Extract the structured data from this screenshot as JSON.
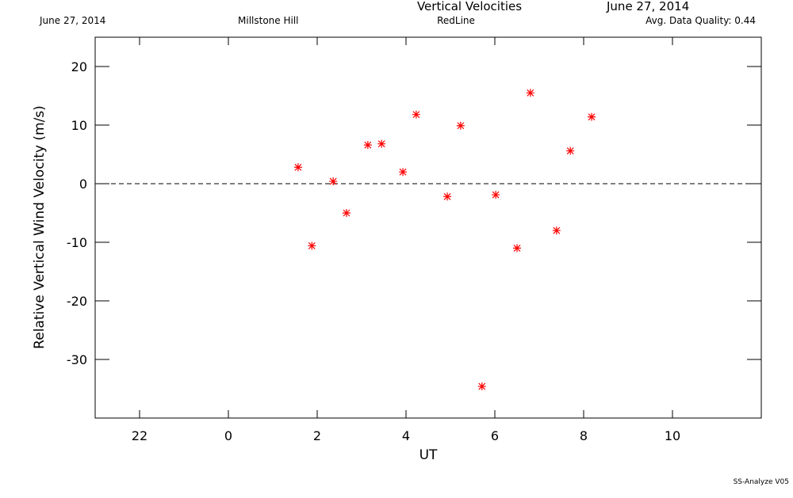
{
  "header": {
    "date_left": "June 27, 2014",
    "site": "Millstone Hill",
    "title": "Vertical Velocities",
    "filter": "RedLine",
    "date_right": "June 27, 2014",
    "quality": "Avg. Data Quality: 0.44"
  },
  "footer": "SS-Analyze V05",
  "chart_data": {
    "type": "scatter",
    "x_label": "UT",
    "y_label": "Relative Vertical Wind Velocity (m/s)",
    "xlim": [
      -3,
      12
    ],
    "xticks": [
      {
        "value": -2,
        "label": "22"
      },
      0,
      2,
      4,
      6,
      8,
      10
    ],
    "ylim": [
      -40,
      25
    ],
    "yticks": [
      -30,
      -20,
      -10,
      0,
      10,
      20
    ],
    "reference_line": 0,
    "color": "#ff0000",
    "x": [
      1.57,
      1.88,
      2.36,
      2.66,
      3.14,
      3.45,
      3.93,
      4.23,
      4.93,
      5.23,
      5.71,
      6.02,
      6.5,
      6.8,
      7.39,
      7.7,
      8.18
    ],
    "values": [
      2.8,
      -10.6,
      0.4,
      -5.0,
      6.6,
      6.8,
      2.0,
      11.8,
      -2.2,
      9.9,
      -34.6,
      -1.9,
      -11.0,
      15.5,
      -8.0,
      5.6,
      11.4
    ]
  }
}
